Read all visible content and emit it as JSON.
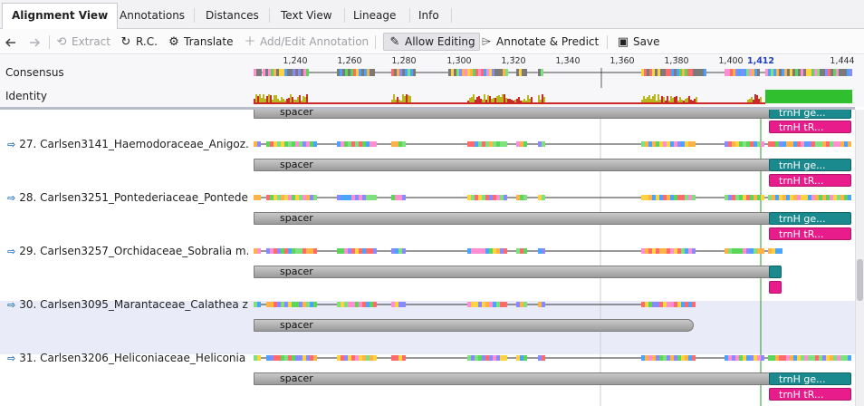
{
  "tabs": [
    {
      "label": "Alignment View",
      "active": true
    },
    {
      "label": "Annotations"
    },
    {
      "label": "Distances"
    },
    {
      "label": "Text View"
    },
    {
      "label": "Lineage"
    },
    {
      "label": "Info"
    }
  ],
  "toolbar": {
    "back_icon": "arrow-left-icon",
    "forward_icon": "arrow-right-icon",
    "extract": "Extract",
    "rc": "R.C.",
    "translate": "Translate",
    "add_edit": "Add/Edit Annotation",
    "allow_editing": "Allow Editing",
    "annotate_predict": "Annotate & Predict",
    "save": "Save"
  },
  "header": {
    "consensus": "Consensus",
    "identity": "Identity",
    "ruler_ticks": [
      "1,240",
      "1,260",
      "1,280",
      "1,300",
      "1,320",
      "1,340",
      "1,360",
      "1,380",
      "1,400",
      "1,412",
      "1,444"
    ]
  },
  "colors": {
    "accent": "#1b8a8e",
    "pink": "#e81c8a",
    "identity_high": "#22a322",
    "identity_mid": "#b8b81e",
    "identity_low": "#cc2a2a",
    "highlight_row": "#e9ebf8"
  },
  "sequences": [
    {
      "name": "27. Carlsen3141_Haemodoraceae_Anigoz...",
      "spacer": "spacer",
      "trnh": "trnH ge...",
      "trnhtr": "trnH tR..."
    },
    {
      "name": "28. Carlsen3251_Pontederiaceae_Pontede...",
      "spacer": "spacer",
      "trnh": "trnH ge...",
      "trnhtr": "trnH tR..."
    },
    {
      "name": "29. Carlsen3257_Orchidaceae_Sobralia m...",
      "spacer": "spacer"
    },
    {
      "name": "30. Carlsen3095_Marantaceae_Calathea z...",
      "spacer": "spacer"
    },
    {
      "name": "31. Carlsen3206_Heliconiaceae_Heliconia ...",
      "spacer": "spacer",
      "trnh": "trnH ge...",
      "trnhtr": "trnH tR..."
    }
  ],
  "top_partial": {
    "spacer": "spacer",
    "trnh": "trnH ge...",
    "trnhtr": "trnH tR..."
  }
}
